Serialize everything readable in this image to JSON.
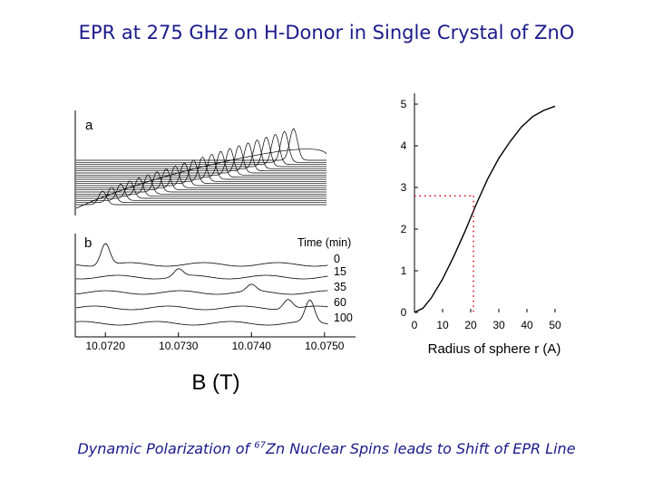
{
  "page": {
    "title": "EPR at 275 GHz on H-Donor in Single Crystal of ZnO",
    "caption_prefix": "Dynamic Polarization of ",
    "caption_sup": "67",
    "caption_suffix": "Zn Nuclear Spins leads to Shift of EPR Line"
  },
  "colors": {
    "title_text": "#1a1a8c",
    "curves": "#000000",
    "guide_dots": "#e0001b"
  },
  "chart_data": [
    {
      "id": "panel-a",
      "type": "line",
      "panel_label": "a",
      "description_free": true,
      "n_spectra": 22,
      "x_range": [
        10.0716,
        10.0754
      ],
      "first_peak": 10.072,
      "last_peak": 10.0749,
      "grid": false
    },
    {
      "id": "panel-b",
      "type": "line",
      "panel_label": "b",
      "legend_title": "Time (min)",
      "xticks": [
        "10.0720",
        "10.0730",
        "10.0740",
        "10.0750"
      ],
      "x_range": [
        10.0716,
        10.0754
      ],
      "xlabel": "B (T)",
      "series": [
        {
          "name": "0",
          "peak": 10.072,
          "amplitude": 1.0
        },
        {
          "name": "15",
          "peak": 10.073,
          "amplitude": 0.35
        },
        {
          "name": "35",
          "peak": 10.074,
          "amplitude": 0.3
        },
        {
          "name": "60",
          "peak": 10.0745,
          "amplitude": 0.45
        },
        {
          "name": "100",
          "peak": 10.0748,
          "amplitude": 1.0
        }
      ],
      "grid": false
    },
    {
      "id": "panel-radius",
      "type": "line",
      "xlabel": "Radius of sphere r (A)",
      "xticks": [
        "0",
        "10",
        "20",
        "30",
        "40",
        "50"
      ],
      "yticks": [
        "0",
        "1",
        "2",
        "3",
        "4",
        "5"
      ],
      "xlim": [
        0,
        50
      ],
      "ylim": [
        0,
        5
      ],
      "series": [
        {
          "x": [
            0,
            3,
            6,
            10,
            14,
            18,
            22,
            26,
            30,
            34,
            38,
            42,
            46,
            50
          ],
          "y": [
            0,
            0.1,
            0.35,
            0.8,
            1.35,
            1.95,
            2.6,
            3.2,
            3.7,
            4.1,
            4.45,
            4.7,
            4.85,
            4.95
          ]
        }
      ],
      "guide": {
        "x": 21,
        "y": 2.8
      },
      "grid": false
    }
  ]
}
